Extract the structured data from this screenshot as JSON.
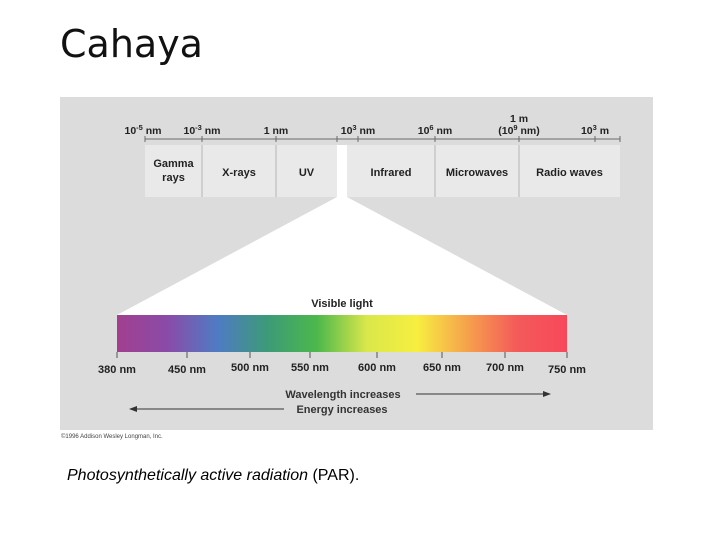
{
  "title": "Cahaya",
  "spectrum": {
    "scale_labels": [
      {
        "base": "10",
        "exp": "-5",
        "unit": "nm"
      },
      {
        "base": "10",
        "exp": "-3",
        "unit": "nm"
      },
      {
        "text": "1 nm"
      },
      {
        "base": "10",
        "exp": "3",
        "unit": "nm"
      },
      {
        "base": "10",
        "exp": "6",
        "unit": "nm"
      },
      {
        "top": "1 m",
        "base": "(10",
        "exp": "9",
        "unit": "nm)"
      },
      {
        "base": "10",
        "exp": "3",
        "unit": "m"
      }
    ],
    "bands": [
      {
        "label": "Gamma",
        "label2": "rays"
      },
      {
        "label": "X-rays"
      },
      {
        "label": "UV"
      },
      {
        "label": "Infrared"
      },
      {
        "label": "Microwaves"
      },
      {
        "label": "Radio waves"
      }
    ]
  },
  "visible": {
    "title": "Visible light",
    "ticks": [
      "380 nm",
      "450 nm",
      "500 nm",
      "550 nm",
      "600 nm",
      "650 nm",
      "700 nm",
      "750 nm"
    ],
    "gradient_colors": [
      "#a23f8f",
      "#8a4ba8",
      "#4f7bc4",
      "#3d9a78",
      "#4cb84b",
      "#d9e84a",
      "#f7ee40",
      "#f6a24c",
      "#f45a5a",
      "#f7485a"
    ]
  },
  "arrows": {
    "wavelength": "Wavelength increases",
    "energy": "Energy increases"
  },
  "credit": "©1996 Addison Wesley Longman, Inc.",
  "caption": {
    "italic": "Photosynthetically active radiation",
    "rest": " (PAR)."
  }
}
